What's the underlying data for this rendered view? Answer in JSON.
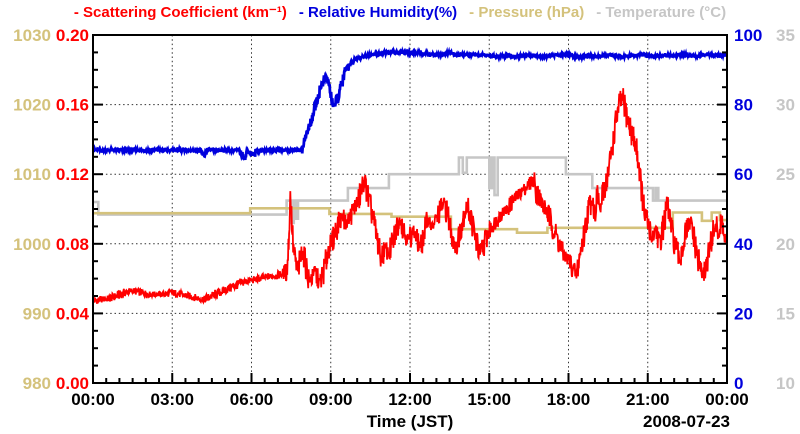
{
  "chart_data": {
    "type": "line",
    "x_axis": {
      "label": "Time (JST)",
      "date_label": "2008-07-23",
      "range_hours": [
        0,
        24
      ],
      "tick_labels": [
        "00:00",
        "03:00",
        "06:00",
        "09:00",
        "12:00",
        "15:00",
        "18:00",
        "21:00",
        "00:00"
      ],
      "minor_tick_hours": 0.5,
      "grid": "dotted"
    },
    "y_axes": [
      {
        "id": "pressure",
        "position": "left-outer",
        "label": "Pressure (hPa)",
        "color": "#d4c27c",
        "range": [
          980,
          1030
        ],
        "tick_labels": [
          "980",
          "990",
          "1000",
          "1010",
          "1020",
          "1030"
        ]
      },
      {
        "id": "scattering",
        "position": "left-inner",
        "label": "Scattering Coefficient (km⁻¹)",
        "color": "#ff0000",
        "range": [
          0,
          0.2
        ],
        "tick_labels": [
          "0.00",
          "0.04",
          "0.08",
          "0.12",
          "0.16",
          "0.20"
        ]
      },
      {
        "id": "humidity",
        "position": "right-inner",
        "label": "Relative Humidity(%)",
        "color": "#0000dd",
        "range": [
          0,
          100
        ],
        "tick_labels": [
          "0",
          "20",
          "40",
          "60",
          "80",
          "100"
        ]
      },
      {
        "id": "temperature",
        "position": "right-outer",
        "label": "Temperature (°C)",
        "color": "#c6c6c6",
        "range": [
          10,
          35
        ],
        "tick_labels": [
          "10",
          "15",
          "20",
          "25",
          "30",
          "35"
        ]
      }
    ],
    "legend": {
      "bullet": "-",
      "items": [
        {
          "label": "Scattering Coefficient (km⁻¹)",
          "color": "#ff0000"
        },
        {
          "label": "Relative Humidity(%)",
          "color": "#0000dd"
        },
        {
          "label": "Pressure (hPa)",
          "color": "#d4c27c"
        },
        {
          "label": "Temperature (°C)",
          "color": "#c6c6c6"
        }
      ]
    },
    "series": [
      {
        "name": "Scattering Coefficient (km⁻¹)",
        "axis": "scattering",
        "color": "#ff0000",
        "style": "noisy",
        "width": 1.8,
        "noise": 0.0016,
        "seed": 1,
        "points": [
          [
            0,
            0.047
          ],
          [
            0.3,
            0.048
          ],
          [
            0.6,
            0.0485
          ],
          [
            0.9,
            0.05
          ],
          [
            1.2,
            0.052
          ],
          [
            1.5,
            0.053
          ],
          [
            1.8,
            0.052
          ],
          [
            2.1,
            0.051
          ],
          [
            2.4,
            0.051
          ],
          [
            2.7,
            0.051
          ],
          [
            3.0,
            0.052
          ],
          [
            3.3,
            0.051
          ],
          [
            3.6,
            0.05
          ],
          [
            3.9,
            0.049
          ],
          [
            4.2,
            0.048
          ],
          [
            4.5,
            0.05
          ],
          [
            4.8,
            0.052
          ],
          [
            5.1,
            0.054
          ],
          [
            5.4,
            0.056
          ],
          [
            5.7,
            0.058
          ],
          [
            6.0,
            0.059
          ],
          [
            6.3,
            0.06
          ],
          [
            6.6,
            0.061
          ],
          [
            6.9,
            0.0615
          ],
          [
            7.2,
            0.063
          ],
          [
            7.35,
            0.066
          ],
          [
            7.42,
            0.085
          ],
          [
            7.47,
            0.107
          ],
          [
            7.52,
            0.095
          ],
          [
            7.58,
            0.078
          ],
          [
            7.65,
            0.07
          ],
          [
            7.75,
            0.064
          ],
          [
            7.85,
            0.071
          ],
          [
            7.95,
            0.075
          ],
          [
            8.05,
            0.068
          ],
          [
            8.15,
            0.061
          ],
          [
            8.25,
            0.059
          ],
          [
            8.35,
            0.065
          ],
          [
            8.45,
            0.062
          ],
          [
            8.55,
            0.058
          ],
          [
            8.65,
            0.06
          ],
          [
            8.75,
            0.065
          ],
          [
            8.85,
            0.072
          ],
          [
            8.95,
            0.08
          ],
          [
            9.05,
            0.081
          ],
          [
            9.15,
            0.086
          ],
          [
            9.3,
            0.092
          ],
          [
            9.45,
            0.096
          ],
          [
            9.6,
            0.091
          ],
          [
            9.75,
            0.096
          ],
          [
            9.9,
            0.101
          ],
          [
            10.05,
            0.105
          ],
          [
            10.2,
            0.113
          ],
          [
            10.3,
            0.115
          ],
          [
            10.45,
            0.104
          ],
          [
            10.6,
            0.095
          ],
          [
            10.75,
            0.083
          ],
          [
            10.9,
            0.071
          ],
          [
            11.05,
            0.078
          ],
          [
            11.2,
            0.074
          ],
          [
            11.35,
            0.081
          ],
          [
            11.5,
            0.089
          ],
          [
            11.65,
            0.094
          ],
          [
            11.8,
            0.086
          ],
          [
            11.95,
            0.082
          ],
          [
            12.1,
            0.088
          ],
          [
            12.25,
            0.083
          ],
          [
            12.4,
            0.078
          ],
          [
            12.55,
            0.088
          ],
          [
            12.7,
            0.094
          ],
          [
            12.85,
            0.09
          ],
          [
            13.0,
            0.094
          ],
          [
            13.15,
            0.1
          ],
          [
            13.3,
            0.104
          ],
          [
            13.45,
            0.095
          ],
          [
            13.6,
            0.085
          ],
          [
            13.75,
            0.078
          ],
          [
            13.9,
            0.088
          ],
          [
            14.05,
            0.098
          ],
          [
            14.2,
            0.102
          ],
          [
            14.35,
            0.092
          ],
          [
            14.5,
            0.082
          ],
          [
            14.65,
            0.074
          ],
          [
            14.8,
            0.08
          ],
          [
            14.95,
            0.086
          ],
          [
            15.1,
            0.09
          ],
          [
            15.3,
            0.094
          ],
          [
            15.5,
            0.098
          ],
          [
            15.7,
            0.1
          ],
          [
            15.9,
            0.105
          ],
          [
            16.1,
            0.108
          ],
          [
            16.3,
            0.111
          ],
          [
            16.5,
            0.114
          ],
          [
            16.65,
            0.117
          ],
          [
            16.8,
            0.11
          ],
          [
            17.0,
            0.103
          ],
          [
            17.2,
            0.098
          ],
          [
            17.4,
            0.09
          ],
          [
            17.6,
            0.082
          ],
          [
            17.8,
            0.074
          ],
          [
            18.0,
            0.071
          ],
          [
            18.15,
            0.066
          ],
          [
            18.3,
            0.062
          ],
          [
            18.45,
            0.075
          ],
          [
            18.6,
            0.086
          ],
          [
            18.75,
            0.1
          ],
          [
            18.9,
            0.106
          ],
          [
            19.0,
            0.097
          ],
          [
            19.1,
            0.11
          ],
          [
            19.2,
            0.099
          ],
          [
            19.35,
            0.112
          ],
          [
            19.5,
            0.12
          ],
          [
            19.65,
            0.135
          ],
          [
            19.8,
            0.151
          ],
          [
            19.95,
            0.161
          ],
          [
            20.05,
            0.164
          ],
          [
            20.15,
            0.157
          ],
          [
            20.3,
            0.148
          ],
          [
            20.45,
            0.141
          ],
          [
            20.6,
            0.133
          ],
          [
            20.7,
            0.121
          ],
          [
            20.8,
            0.106
          ],
          [
            20.9,
            0.096
          ],
          [
            21.0,
            0.091
          ],
          [
            21.15,
            0.083
          ],
          [
            21.3,
            0.089
          ],
          [
            21.45,
            0.081
          ],
          [
            21.6,
            0.091
          ],
          [
            21.75,
            0.103
          ],
          [
            21.9,
            0.088
          ],
          [
            22.05,
            0.078
          ],
          [
            22.2,
            0.07
          ],
          [
            22.35,
            0.08
          ],
          [
            22.5,
            0.089
          ],
          [
            22.65,
            0.092
          ],
          [
            22.8,
            0.078
          ],
          [
            22.95,
            0.068
          ],
          [
            23.1,
            0.062
          ],
          [
            23.25,
            0.07
          ],
          [
            23.4,
            0.081
          ],
          [
            23.55,
            0.091
          ],
          [
            23.7,
            0.085
          ],
          [
            23.82,
            0.093
          ],
          [
            23.92,
            0.081
          ],
          [
            24,
            0.08
          ]
        ]
      },
      {
        "name": "Relative Humidity(%)",
        "axis": "humidity",
        "color": "#0000dd",
        "style": "noisy",
        "width": 2.8,
        "noise": 0.35,
        "seed": 2,
        "points": [
          [
            0,
            67
          ],
          [
            0.4,
            66.8
          ],
          [
            0.8,
            67
          ],
          [
            1.2,
            66.9
          ],
          [
            1.6,
            67
          ],
          [
            2.0,
            66.8
          ],
          [
            2.4,
            67
          ],
          [
            2.8,
            66.9
          ],
          [
            3.2,
            67
          ],
          [
            3.6,
            66.8
          ],
          [
            4.0,
            67
          ],
          [
            4.2,
            65.2
          ],
          [
            4.32,
            67
          ],
          [
            4.7,
            66.8
          ],
          [
            5.1,
            67
          ],
          [
            5.5,
            66.9
          ],
          [
            5.75,
            64.6
          ],
          [
            5.85,
            66.8
          ],
          [
            6.1,
            65.4
          ],
          [
            6.22,
            66.9
          ],
          [
            6.6,
            66.8
          ],
          [
            7.0,
            67
          ],
          [
            7.4,
            66.8
          ],
          [
            7.7,
            67
          ],
          [
            7.95,
            67
          ],
          [
            8.0,
            70.8
          ],
          [
            8.08,
            71.4
          ],
          [
            8.15,
            72.5
          ],
          [
            8.25,
            75
          ],
          [
            8.35,
            78
          ],
          [
            8.5,
            82
          ],
          [
            8.62,
            85
          ],
          [
            8.75,
            87.4
          ],
          [
            8.85,
            88
          ],
          [
            8.95,
            85
          ],
          [
            9.05,
            81
          ],
          [
            9.15,
            79.5
          ],
          [
            9.28,
            82.5
          ],
          [
            9.42,
            86
          ],
          [
            9.55,
            89.5
          ],
          [
            9.7,
            91.4
          ],
          [
            9.85,
            92.5
          ],
          [
            10.0,
            93.2
          ],
          [
            10.2,
            93.8
          ],
          [
            10.5,
            94.3
          ],
          [
            10.8,
            94.6
          ],
          [
            11.1,
            95
          ],
          [
            11.6,
            95
          ],
          [
            12.1,
            95
          ],
          [
            12.5,
            94.7
          ],
          [
            12.8,
            94.3
          ],
          [
            13.2,
            94.3
          ],
          [
            13.5,
            94.8
          ],
          [
            13.8,
            94.3
          ],
          [
            14.3,
            94.3
          ],
          [
            14.8,
            94.3
          ],
          [
            15.3,
            93.7
          ],
          [
            15.7,
            94.1
          ],
          [
            16.1,
            93.8
          ],
          [
            16.5,
            94.2
          ],
          [
            16.9,
            93.8
          ],
          [
            17.3,
            94.1
          ],
          [
            17.7,
            94.3
          ],
          [
            18.0,
            94.2
          ],
          [
            18.4,
            93.6
          ],
          [
            18.8,
            94.1
          ],
          [
            19.2,
            93.8
          ],
          [
            19.6,
            94.2
          ],
          [
            20.0,
            93.8
          ],
          [
            20.4,
            94.1
          ],
          [
            20.8,
            94.3
          ],
          [
            21.2,
            93.9
          ],
          [
            21.6,
            94.3
          ],
          [
            22.0,
            94.1
          ],
          [
            22.4,
            94.3
          ],
          [
            22.8,
            93.9
          ],
          [
            23.2,
            94.3
          ],
          [
            23.6,
            94.1
          ],
          [
            24,
            94.3
          ]
        ]
      },
      {
        "name": "Pressure (hPa)",
        "axis": "pressure",
        "color": "#d4c27c",
        "style": "step",
        "width": 2.6,
        "points": [
          [
            0,
            1004.4
          ],
          [
            5.95,
            1005.1
          ],
          [
            8.95,
            1004.3
          ],
          [
            11.3,
            1003.9
          ],
          [
            13.55,
            1002.1
          ],
          [
            16.05,
            1001.6
          ],
          [
            17.2,
            1002.3
          ],
          [
            21.95,
            1004.5
          ],
          [
            23.05,
            1003.3
          ],
          [
            23.42,
            1004.5
          ],
          [
            23.73,
            1003.4
          ]
        ]
      },
      {
        "name": "Temperature (°C)",
        "axis": "temperature",
        "color": "#c6c6c6",
        "style": "step",
        "width": 2.6,
        "points": [
          [
            0,
            23.0
          ],
          [
            0.2,
            22.1
          ],
          [
            7.33,
            23.1
          ],
          [
            7.5,
            21.5
          ],
          [
            7.6,
            23.1
          ],
          [
            7.66,
            21.8
          ],
          [
            7.76,
            23.1
          ],
          [
            9.65,
            24.0
          ],
          [
            11.2,
            25.0
          ],
          [
            13.85,
            26.2
          ],
          [
            14.0,
            25.1
          ],
          [
            14.15,
            26.2
          ],
          [
            15.0,
            24.0
          ],
          [
            15.1,
            26.2
          ],
          [
            15.2,
            23.5
          ],
          [
            15.32,
            26.2
          ],
          [
            17.9,
            25.0
          ],
          [
            18.9,
            24.0
          ],
          [
            21.2,
            23.1
          ],
          [
            21.3,
            24.0
          ],
          [
            21.4,
            23.1
          ]
        ]
      }
    ]
  }
}
